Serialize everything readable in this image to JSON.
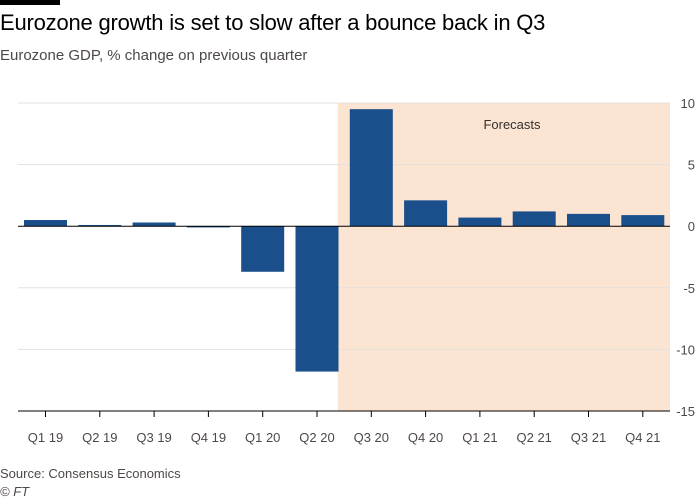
{
  "chart_data": {
    "type": "bar",
    "title": "Eurozone growth is set to slow after a bounce back in Q3",
    "subtitle": "Eurozone GDP, % change on previous quarter",
    "categories": [
      "Q1 19",
      "Q2 19",
      "Q3 19",
      "Q4 19",
      "Q1 20",
      "Q2 20",
      "Q3 20",
      "Q4 20",
      "Q1 21",
      "Q2 21",
      "Q3 21",
      "Q4 21"
    ],
    "values": [
      0.5,
      0.1,
      0.3,
      -0.1,
      -3.7,
      -11.8,
      9.5,
      2.1,
      0.7,
      1.2,
      1.0,
      0.9
    ],
    "ylim": [
      -15,
      10
    ],
    "yticks": [
      10,
      5,
      0,
      -5,
      -10,
      -15
    ],
    "ytick_labels": [
      "10",
      "5",
      "0",
      "-5",
      "-10",
      "-15"
    ],
    "grid": true,
    "annotation": {
      "label": "Forecasts",
      "from_category": "Q3 20",
      "to_category": "Q4 21"
    },
    "colors": {
      "bar": "#1a4f8b",
      "forecast_band": "#fbe4d2",
      "grid": "#e6e0db",
      "zero_line": "#000000"
    }
  },
  "footer": {
    "source": "Source: Consensus Economics",
    "credit": "© FT"
  }
}
